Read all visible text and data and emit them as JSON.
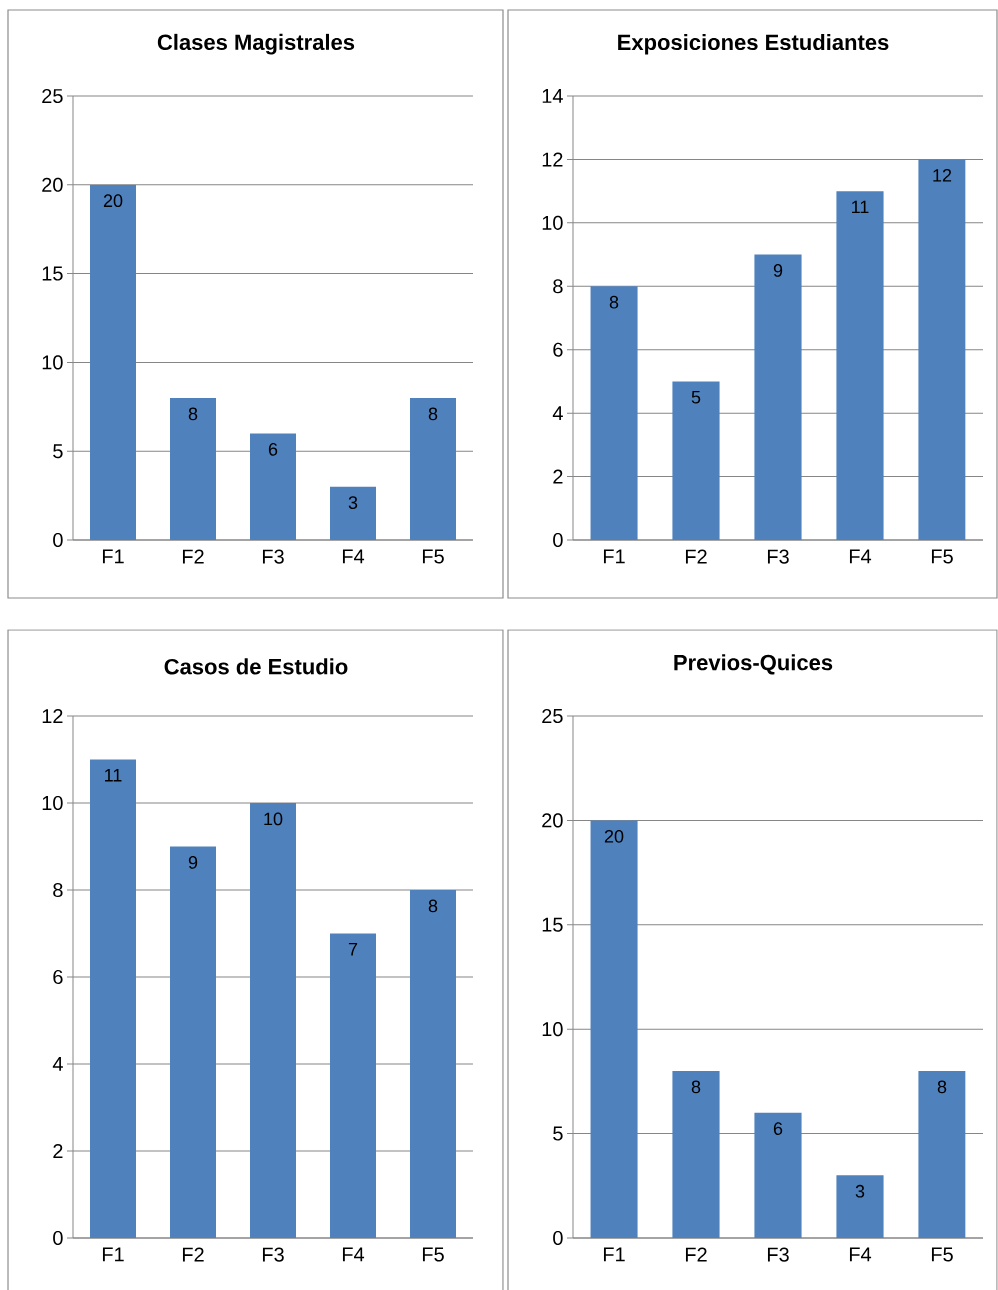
{
  "chart_data": [
    {
      "type": "bar",
      "title": "Clases Magistrales",
      "categories": [
        "F1",
        "F2",
        "F3",
        "F4",
        "F5"
      ],
      "values": [
        20,
        8,
        6,
        3,
        8
      ],
      "color": "#4f81bd",
      "ylim": [
        0,
        25
      ],
      "yticks": [
        0,
        5,
        10,
        15,
        20,
        25
      ],
      "grid": "y",
      "data_labels": true
    },
    {
      "type": "bar",
      "title": "Exposiciones Estudiantes",
      "categories": [
        "F1",
        "F2",
        "F3",
        "F4",
        "F5"
      ],
      "values": [
        8,
        5,
        9,
        11,
        12
      ],
      "color": "#4f81bd",
      "ylim": [
        0,
        14
      ],
      "yticks": [
        0,
        2,
        4,
        6,
        8,
        10,
        12,
        14
      ],
      "grid": "y",
      "data_labels": true
    },
    {
      "type": "bar",
      "title": "Casos de Estudio",
      "categories": [
        "F1",
        "F2",
        "F3",
        "F4",
        "F5"
      ],
      "values": [
        11,
        9,
        10,
        7,
        8
      ],
      "color": "#4f81bd",
      "ylim": [
        0,
        12
      ],
      "yticks": [
        0,
        2,
        4,
        6,
        8,
        10,
        12
      ],
      "grid": "y",
      "data_labels": true
    },
    {
      "type": "bar",
      "title": "Previos-Quices",
      "categories": [
        "F1",
        "F2",
        "F3",
        "F4",
        "F5"
      ],
      "values": [
        20,
        8,
        6,
        3,
        8
      ],
      "color": "#4f81bd",
      "ylim": [
        0,
        25
      ],
      "yticks": [
        0,
        5,
        10,
        15,
        20,
        25
      ],
      "grid": "y",
      "data_labels": true
    }
  ]
}
